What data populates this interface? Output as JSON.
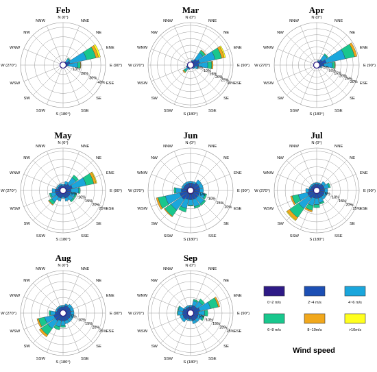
{
  "directions": [
    "N (0°)",
    "NNE",
    "NE",
    "ENE",
    "E (90°)",
    "ESE",
    "SE",
    "SSE",
    "S (180°)",
    "SSW",
    "SW",
    "WSW",
    "W (270°)",
    "WNW",
    "NW",
    "NNW"
  ],
  "bins": [
    "0~2 m/s",
    "2~4 m/s",
    "4~6 m/s",
    "6~8 m/s",
    "8~10m/s",
    ">10m/s"
  ],
  "colors": [
    "#2e1a86",
    "#1c4fb4",
    "#1aa6dc",
    "#19c78d",
    "#f1a81c",
    "#ffff1e"
  ],
  "legend": {
    "title": "Wind speed"
  },
  "chart_data": [
    {
      "type": "polar-bar",
      "title": "Feb",
      "rings": [
        10,
        20,
        30,
        40
      ],
      "ring_labels": [
        "10%",
        "20%",
        "30%",
        "40%"
      ],
      "rmax": 45,
      "sectors": [
        [
          1,
          0.6,
          0.3,
          0,
          0,
          0
        ],
        [
          1,
          0.8,
          0.6,
          0,
          0,
          0
        ],
        [
          1.2,
          3,
          4,
          1,
          0,
          0
        ],
        [
          1.5,
          6,
          18,
          10,
          3,
          2
        ],
        [
          1.5,
          4,
          10,
          3,
          0.5,
          0
        ],
        [
          1.2,
          2,
          1,
          0,
          0,
          0
        ],
        [
          1,
          0.8,
          0,
          0,
          0,
          0
        ],
        [
          1,
          0.6,
          0,
          0,
          0,
          0
        ],
        [
          1,
          0.5,
          0,
          0,
          0,
          0
        ],
        [
          1,
          0.5,
          0,
          0,
          0,
          0
        ],
        [
          1,
          0.6,
          0,
          0,
          0,
          0
        ],
        [
          1,
          0.6,
          0,
          0,
          0,
          0
        ],
        [
          1,
          0.6,
          0,
          0,
          0,
          0
        ],
        [
          1,
          0.6,
          0,
          0,
          0,
          0
        ],
        [
          1,
          0.6,
          0,
          0,
          0,
          0
        ],
        [
          1,
          0.5,
          0,
          0,
          0,
          0
        ]
      ]
    },
    {
      "type": "polar-bar",
      "title": "Mar",
      "rings": [
        5,
        10,
        15,
        20,
        25,
        30
      ],
      "ring_labels": [
        "5%",
        "10%",
        "15%",
        "20%",
        "25%",
        "30%"
      ],
      "rmax": 32,
      "sectors": [
        [
          1,
          1,
          0.5,
          0,
          0,
          0
        ],
        [
          1.2,
          2,
          1,
          0,
          0,
          0
        ],
        [
          1.5,
          4,
          6,
          2,
          0.5,
          0
        ],
        [
          2,
          5,
          12,
          5,
          2,
          1
        ],
        [
          2,
          4,
          7,
          3,
          1,
          0
        ],
        [
          1.5,
          2,
          2,
          0.5,
          0,
          0
        ],
        [
          1.2,
          1.5,
          1,
          0,
          0,
          0
        ],
        [
          1,
          1,
          0.5,
          0,
          0,
          0
        ],
        [
          1,
          1,
          0.5,
          0,
          0,
          0
        ],
        [
          1,
          1.5,
          1,
          0,
          0,
          0
        ],
        [
          1,
          2,
          2,
          1.5,
          0.8,
          0
        ],
        [
          1,
          1.5,
          1,
          0,
          0,
          0
        ],
        [
          1,
          1,
          0.5,
          0,
          0,
          0
        ],
        [
          1,
          1,
          0.5,
          0,
          0,
          0
        ],
        [
          1,
          1,
          0.5,
          0,
          0,
          0
        ],
        [
          1,
          1,
          0.5,
          0,
          0,
          0
        ]
      ]
    },
    {
      "type": "polar-bar",
      "title": "Apr",
      "rings": [
        5,
        10,
        15,
        20,
        25,
        30
      ],
      "ring_labels": [
        "5%",
        "10%",
        "15%",
        "20%",
        "25%",
        "30%"
      ],
      "rmax": 35,
      "sectors": [
        [
          1,
          1,
          0.5,
          0,
          0,
          0
        ],
        [
          1.2,
          2,
          1,
          0,
          0,
          0
        ],
        [
          1.5,
          4,
          5,
          1,
          0,
          0
        ],
        [
          2,
          6,
          16,
          8,
          2,
          0
        ],
        [
          2,
          4,
          7,
          2,
          0.5,
          0
        ],
        [
          1.5,
          2,
          1,
          0,
          0,
          0
        ],
        [
          1.2,
          1.5,
          0.5,
          0,
          0,
          0
        ],
        [
          1,
          1,
          0.5,
          0,
          0,
          0
        ],
        [
          1,
          1,
          0.5,
          0,
          0,
          0
        ],
        [
          1,
          1,
          0.5,
          0,
          0,
          0
        ],
        [
          1,
          1.2,
          0.5,
          0,
          0,
          0
        ],
        [
          1,
          1,
          0.5,
          0,
          0,
          0
        ],
        [
          1,
          1,
          0.5,
          0,
          0,
          0
        ],
        [
          1,
          1,
          0.5,
          0,
          0,
          0
        ],
        [
          1,
          1,
          0.5,
          0,
          0,
          0
        ],
        [
          1,
          1,
          0.5,
          0,
          0,
          0
        ]
      ]
    },
    {
      "type": "polar-bar",
      "title": "May",
      "rings": [
        5,
        10,
        15,
        20,
        25
      ],
      "ring_labels": [
        "5%",
        "10%",
        "15%",
        "20%",
        "25%"
      ],
      "rmax": 27,
      "sectors": [
        [
          1,
          2,
          1,
          0,
          0,
          0
        ],
        [
          1.5,
          2.5,
          2,
          0,
          0,
          0
        ],
        [
          2,
          3,
          5,
          2,
          0,
          0
        ],
        [
          2,
          4,
          9,
          5,
          1.5,
          0.5
        ],
        [
          2,
          3,
          5,
          1,
          0,
          0
        ],
        [
          2,
          3,
          3,
          1,
          0,
          0
        ],
        [
          2,
          3,
          3,
          1,
          0,
          0
        ],
        [
          2,
          3,
          2,
          0,
          0,
          0
        ],
        [
          2,
          2,
          1,
          0,
          0,
          0
        ],
        [
          2,
          3,
          2,
          0,
          0,
          0
        ],
        [
          2,
          3,
          4,
          2,
          0.5,
          0
        ],
        [
          2,
          3,
          3,
          1,
          0,
          0
        ],
        [
          2,
          3,
          2,
          0,
          0,
          0
        ],
        [
          1.5,
          2,
          1,
          0,
          0,
          0
        ],
        [
          1.5,
          2,
          1,
          0,
          0,
          0
        ],
        [
          1.5,
          2,
          1,
          0,
          0,
          0
        ]
      ]
    },
    {
      "type": "polar-bar",
      "title": "Jun",
      "rings": [
        5,
        10,
        15,
        20
      ],
      "ring_labels": [
        "5%",
        "10%",
        "15%",
        "20%"
      ],
      "rmax": 23,
      "sectors": [
        [
          2,
          2,
          1,
          0,
          0,
          0
        ],
        [
          2,
          2,
          1,
          0,
          0,
          0
        ],
        [
          2,
          3,
          2,
          0,
          0,
          0
        ],
        [
          2,
          3,
          2,
          0,
          0,
          0
        ],
        [
          2,
          3,
          2,
          0,
          0,
          0
        ],
        [
          2,
          3,
          3,
          1,
          0,
          0
        ],
        [
          2,
          3,
          4,
          1,
          0,
          0
        ],
        [
          2,
          3,
          4,
          1,
          0,
          0
        ],
        [
          2,
          3,
          3,
          0.5,
          0,
          0
        ],
        [
          2,
          3,
          5,
          2,
          0,
          0
        ],
        [
          2,
          4,
          7,
          4,
          0.5,
          0
        ],
        [
          2,
          4,
          8,
          4,
          1,
          0
        ],
        [
          2,
          3,
          3,
          1,
          0,
          0
        ],
        [
          2,
          2,
          1,
          0,
          0,
          0
        ],
        [
          2,
          2,
          1,
          0,
          0,
          0
        ],
        [
          2,
          2,
          1,
          0,
          0,
          0
        ]
      ]
    },
    {
      "type": "polar-bar",
      "title": "Jul",
      "rings": [
        5,
        10,
        15,
        20,
        25
      ],
      "ring_labels": [
        "5%",
        "10%",
        "15%",
        "20%",
        "25%"
      ],
      "rmax": 27,
      "sectors": [
        [
          2,
          2,
          1,
          0,
          0,
          0
        ],
        [
          2,
          2,
          1,
          0,
          0,
          0
        ],
        [
          2,
          3,
          2,
          0,
          0,
          0
        ],
        [
          2,
          3,
          3,
          1,
          0,
          0
        ],
        [
          2,
          3,
          2,
          0,
          0,
          0
        ],
        [
          2,
          3,
          2,
          0,
          0,
          0
        ],
        [
          2,
          3,
          2,
          0,
          0,
          0
        ],
        [
          2,
          3,
          3,
          1,
          0,
          0
        ],
        [
          2,
          3,
          4,
          2,
          0,
          0
        ],
        [
          2,
          3,
          5,
          3,
          1,
          0
        ],
        [
          2,
          4,
          8,
          7,
          2,
          0.5
        ],
        [
          2,
          4,
          6,
          4,
          1,
          0
        ],
        [
          2,
          3,
          2,
          0,
          0,
          0
        ],
        [
          2,
          2,
          1,
          0,
          0,
          0
        ],
        [
          2,
          2,
          1,
          0,
          0,
          0
        ],
        [
          2,
          2,
          1,
          0,
          0,
          0
        ]
      ]
    },
    {
      "type": "polar-bar",
      "title": "Aug",
      "rings": [
        5,
        10,
        15,
        20,
        25
      ],
      "ring_labels": [
        "5%",
        "10%",
        "15%",
        "20%",
        "25%"
      ],
      "rmax": 27,
      "sectors": [
        [
          2,
          2,
          1,
          0,
          0,
          0
        ],
        [
          2,
          3,
          1,
          0,
          0,
          0
        ],
        [
          2,
          3,
          2,
          0,
          0,
          0
        ],
        [
          2,
          3,
          2,
          0,
          0,
          0
        ],
        [
          2,
          3,
          2,
          0,
          0,
          0
        ],
        [
          2,
          3,
          2,
          0,
          0,
          0
        ],
        [
          2,
          3,
          2,
          0,
          0,
          0
        ],
        [
          2,
          3,
          2,
          0,
          0,
          0
        ],
        [
          2,
          3,
          3,
          1,
          0,
          0
        ],
        [
          2,
          3,
          4,
          2,
          0,
          0
        ],
        [
          2,
          4,
          6,
          5,
          1.5,
          0
        ],
        [
          2,
          4,
          6,
          4,
          1,
          0
        ],
        [
          2,
          3,
          3,
          1,
          0,
          0
        ],
        [
          2,
          2,
          1,
          0,
          0,
          0
        ],
        [
          2,
          2,
          1,
          0,
          0,
          0
        ],
        [
          2,
          2,
          1,
          0,
          0,
          0
        ]
      ]
    },
    {
      "type": "polar-bar",
      "title": "Sep",
      "rings": [
        5,
        10,
        15,
        20,
        25
      ],
      "ring_labels": [
        "5%",
        "10%",
        "15%",
        "20%",
        "25%"
      ],
      "rmax": 27,
      "sectors": [
        [
          2,
          2,
          1,
          0,
          0,
          0
        ],
        [
          2,
          3,
          3,
          1,
          0,
          0
        ],
        [
          2,
          3,
          4,
          2,
          0,
          0
        ],
        [
          2,
          4,
          7,
          5,
          1,
          0
        ],
        [
          2,
          3,
          4,
          2,
          0,
          0
        ],
        [
          2,
          3,
          3,
          1,
          0,
          0
        ],
        [
          2,
          3,
          2,
          0,
          0,
          0
        ],
        [
          2,
          3,
          2,
          0,
          0,
          0
        ],
        [
          2,
          2,
          1,
          0,
          0,
          0
        ],
        [
          2,
          2,
          1,
          0,
          0,
          0
        ],
        [
          2,
          3,
          2,
          0,
          0,
          0
        ],
        [
          2,
          3,
          2,
          0,
          0,
          0
        ],
        [
          2,
          3,
          3,
          0.5,
          0,
          0
        ],
        [
          2,
          3,
          3,
          0.5,
          0,
          0
        ],
        [
          2,
          2,
          1,
          0,
          0,
          0
        ],
        [
          2,
          2,
          1,
          0,
          0,
          0
        ]
      ]
    }
  ]
}
